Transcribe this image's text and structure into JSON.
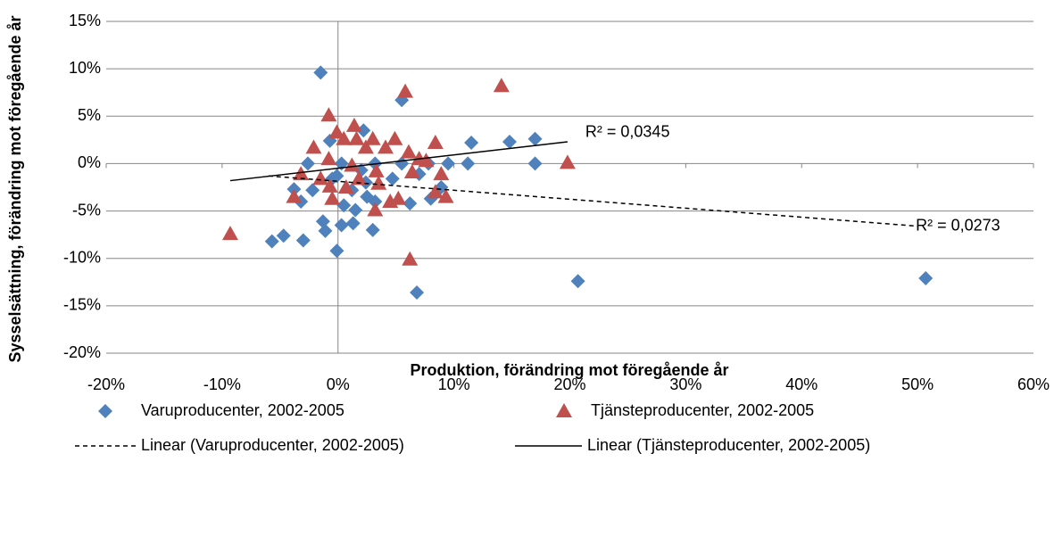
{
  "chart_data": {
    "type": "scatter",
    "xlabel": "Produktion, förändring mot föregående år",
    "ylabel": "Sysselsättning, förändring mot föregående år",
    "xlim": [
      -20,
      60
    ],
    "ylim": [
      -20,
      15
    ],
    "xticks": [
      {
        "value": -20,
        "label": "-20%"
      },
      {
        "value": -10,
        "label": "-10%"
      },
      {
        "value": 0,
        "label": "0%"
      },
      {
        "value": 10,
        "label": "10%"
      },
      {
        "value": 20,
        "label": "20%"
      },
      {
        "value": 30,
        "label": "30%"
      },
      {
        "value": 40,
        "label": "40%"
      },
      {
        "value": 50,
        "label": "50%"
      },
      {
        "value": 60,
        "label": "60%"
      }
    ],
    "yticks": [
      {
        "value": -20,
        "label": "-20%"
      },
      {
        "value": -15,
        "label": "-15%"
      },
      {
        "value": -10,
        "label": "-10%"
      },
      {
        "value": -5,
        "label": "-5%"
      },
      {
        "value": 0,
        "label": "0%"
      },
      {
        "value": 5,
        "label": "5%"
      },
      {
        "value": 10,
        "label": "10%"
      },
      {
        "value": 15,
        "label": "15%"
      }
    ],
    "grid": true,
    "series": [
      {
        "name": "Varuproducenter, 2002-2005",
        "color": "#4f81bd",
        "marker": "diamond",
        "x": [
          -1.5,
          5.5,
          2.2,
          -0.7,
          11.5,
          14.8,
          17,
          17,
          11.2,
          9.5,
          7.8,
          -2.6,
          0.3,
          3.2,
          5.5,
          2,
          2.4,
          -3.8,
          -3.2,
          -2.2,
          -0.5,
          -0.1,
          1.2,
          2.5,
          3.2,
          1.5,
          0.5,
          -1.3,
          -1.1,
          1.3,
          0.3,
          3,
          6.2,
          8,
          8.9,
          7,
          -4.7,
          -5.7,
          -3,
          -0.1,
          6.8,
          20.7,
          50.7,
          4.7
        ],
        "values": [
          9.6,
          6.7,
          3.5,
          2.4,
          2.2,
          2.3,
          2.6,
          0,
          0,
          0,
          0,
          0,
          0,
          0,
          0,
          -0.7,
          -2,
          -2.7,
          -4,
          -2.8,
          -1.6,
          -1.3,
          -2.8,
          -3.5,
          -4,
          -4.9,
          -4.4,
          -6.1,
          -7.1,
          -6.3,
          -6.5,
          -7,
          -4.2,
          -3.7,
          -2.5,
          -1.1,
          -7.6,
          -8.2,
          -8.1,
          -9.2,
          -13.6,
          -12.4,
          -12.1,
          -1.6
        ]
      },
      {
        "name": "Tjänsteproducenter, 2002-2005",
        "color": "#c0504d",
        "marker": "triangle",
        "x": [
          -9.3,
          -3.8,
          -3.2,
          -2.1,
          -0.8,
          -0.8,
          -1.5,
          -0.7,
          -0.5,
          -0.1,
          0.5,
          1.4,
          1.6,
          2.4,
          3,
          3.3,
          3.5,
          3.2,
          4.1,
          4.5,
          4.9,
          5.2,
          5.8,
          6.1,
          6.4,
          6.2,
          7,
          7.6,
          8.4,
          8.9,
          8.4,
          9.3,
          14.1,
          19.8,
          1.2,
          0.7,
          1.8
        ],
        "values": [
          -7.4,
          -3.5,
          -1.1,
          1.7,
          5.1,
          0.5,
          -1.6,
          -2.4,
          -3.7,
          3.3,
          2.6,
          4,
          2.6,
          1.7,
          2.6,
          -0.8,
          -2.1,
          -4.9,
          1.7,
          -4,
          2.6,
          -3.7,
          7.6,
          1.2,
          -0.9,
          -10.1,
          0.5,
          0.3,
          2.2,
          -1.1,
          -3,
          -3.5,
          8.2,
          0.1,
          -0.2,
          -2.5,
          -1.6
        ]
      }
    ],
    "trendlines": [
      {
        "name": "Linear (Varuproducenter, 2002-2005)",
        "color": "#000000",
        "dashed": true,
        "x": [
          -6,
          50
        ],
        "values": [
          -1.3,
          -6.6
        ],
        "r2_label": "R² = 0,0273"
      },
      {
        "name": "Linear (Tjänsteproducenter, 2002-2005)",
        "color": "#000000",
        "dashed": false,
        "x": [
          -9.3,
          19.8
        ],
        "values": [
          -1.8,
          2.3
        ],
        "r2_label": "R² = 0,0345"
      }
    ],
    "legend_position": "bottom"
  }
}
